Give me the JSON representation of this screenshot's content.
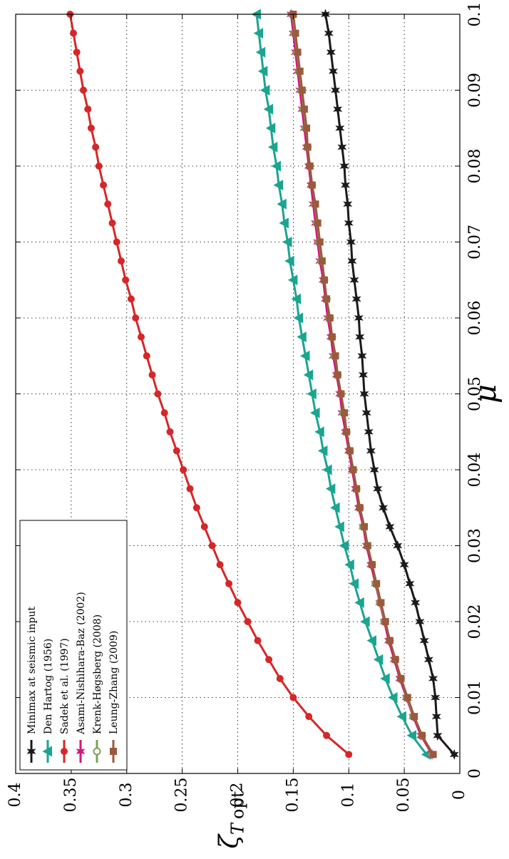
{
  "chart_data": {
    "type": "line",
    "orientation": "rotated 90 degrees clockwise",
    "xlabel": "μ",
    "ylabel": "ζ",
    "ylabel_sub": "T",
    "ylabel_sub2": "opt",
    "xlim": [
      0,
      0.1
    ],
    "ylim": [
      0,
      0.4
    ],
    "x_ticks": [
      "0",
      "0.01",
      "0.02",
      "0.03",
      "0.04",
      "0.05",
      "0.06",
      "0.07",
      "0.08",
      "0.09",
      "0.1"
    ],
    "y_ticks": [
      "0",
      "0.05",
      "0.1",
      "0.15",
      "0.2",
      "0.25",
      "0.3",
      "0.35",
      "0.4"
    ],
    "grid": true,
    "legend_position": "top-left",
    "x": [
      0.0025,
      0.005,
      0.0075,
      0.01,
      0.0125,
      0.015,
      0.0175,
      0.02,
      0.0225,
      0.025,
      0.0275,
      0.03,
      0.0325,
      0.035,
      0.0375,
      0.04,
      0.0425,
      0.045,
      0.0475,
      0.05,
      0.0525,
      0.055,
      0.0575,
      0.06,
      0.0625,
      0.065,
      0.0675,
      0.07,
      0.0725,
      0.075,
      0.0775,
      0.08,
      0.0825,
      0.085,
      0.0875,
      0.09,
      0.0925,
      0.095,
      0.0975,
      0.1
    ],
    "series": [
      {
        "name": "Minimax at seismic input",
        "color": "#1a1a1a",
        "marker": "star",
        "values": [
          0.005,
          0.02,
          0.021,
          0.022,
          0.024,
          0.028,
          0.032,
          0.036,
          0.04,
          0.045,
          0.05,
          0.056,
          0.063,
          0.069,
          0.074,
          0.077,
          0.08,
          0.082,
          0.084,
          0.086,
          0.087,
          0.088,
          0.09,
          0.091,
          0.093,
          0.095,
          0.097,
          0.098,
          0.1,
          0.101,
          0.103,
          0.104,
          0.106,
          0.108,
          0.11,
          0.112,
          0.114,
          0.116,
          0.118,
          0.121
        ]
      },
      {
        "name": "Den Hartog (1956)",
        "color": "#1aa591",
        "marker": "triangle",
        "values": [
          0.03,
          0.043,
          0.052,
          0.06,
          0.067,
          0.073,
          0.079,
          0.085,
          0.09,
          0.095,
          0.099,
          0.104,
          0.108,
          0.112,
          0.116,
          0.119,
          0.123,
          0.126,
          0.13,
          0.133,
          0.136,
          0.139,
          0.142,
          0.145,
          0.147,
          0.15,
          0.153,
          0.155,
          0.158,
          0.16,
          0.163,
          0.165,
          0.168,
          0.17,
          0.172,
          0.175,
          0.177,
          0.179,
          0.181,
          0.183
        ]
      },
      {
        "name": "Sadek et al. (1997)",
        "color": "#d62728",
        "marker": "circle",
        "values": [
          0.1,
          0.12,
          0.136,
          0.15,
          0.162,
          0.172,
          0.182,
          0.191,
          0.2,
          0.208,
          0.216,
          0.223,
          0.23,
          0.237,
          0.243,
          0.249,
          0.255,
          0.261,
          0.266,
          0.272,
          0.277,
          0.282,
          0.287,
          0.292,
          0.296,
          0.301,
          0.305,
          0.309,
          0.313,
          0.317,
          0.321,
          0.325,
          0.328,
          0.332,
          0.335,
          0.339,
          0.342,
          0.345,
          0.348,
          0.351
        ]
      },
      {
        "name": "Asami-Nishihara-Baz (2002)",
        "color": "#d4147b",
        "marker": "star",
        "values": [
          0.025,
          0.035,
          0.042,
          0.048,
          0.054,
          0.059,
          0.064,
          0.068,
          0.072,
          0.076,
          0.08,
          0.084,
          0.087,
          0.091,
          0.094,
          0.097,
          0.1,
          0.103,
          0.106,
          0.108,
          0.111,
          0.114,
          0.116,
          0.119,
          0.121,
          0.123,
          0.126,
          0.128,
          0.13,
          0.132,
          0.134,
          0.136,
          0.138,
          0.14,
          0.142,
          0.144,
          0.146,
          0.148,
          0.15,
          0.152
        ]
      },
      {
        "name": "Krenk-Høgsberg (2008)",
        "color": "#7ba05b",
        "marker": "circle-open",
        "values": [
          0.025,
          0.034,
          0.042,
          0.048,
          0.053,
          0.058,
          0.063,
          0.068,
          0.072,
          0.076,
          0.079,
          0.083,
          0.087,
          0.09,
          0.093,
          0.096,
          0.099,
          0.102,
          0.105,
          0.107,
          0.11,
          0.113,
          0.115,
          0.118,
          0.12,
          0.122,
          0.125,
          0.127,
          0.129,
          0.131,
          0.133,
          0.135,
          0.137,
          0.139,
          0.141,
          0.143,
          0.145,
          0.147,
          0.149,
          0.151
        ]
      },
      {
        "name": "Leung-Zhang (2009)",
        "color": "#9b5a3c",
        "marker": "square",
        "values": [
          0.024,
          0.034,
          0.041,
          0.047,
          0.053,
          0.058,
          0.063,
          0.067,
          0.071,
          0.075,
          0.079,
          0.083,
          0.086,
          0.09,
          0.093,
          0.096,
          0.099,
          0.102,
          0.104,
          0.107,
          0.11,
          0.112,
          0.115,
          0.117,
          0.12,
          0.122,
          0.124,
          0.126,
          0.128,
          0.13,
          0.133,
          0.135,
          0.137,
          0.138,
          0.14,
          0.142,
          0.144,
          0.146,
          0.148,
          0.15
        ]
      }
    ]
  }
}
